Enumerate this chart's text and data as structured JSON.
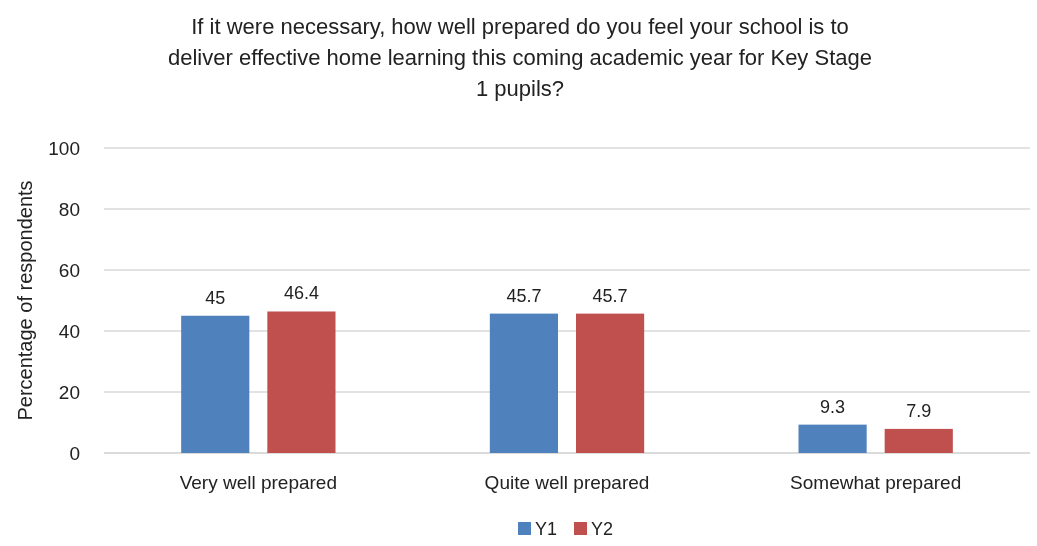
{
  "chart_data": {
    "type": "bar",
    "title": "If it were necessary, how well prepared do you feel your school is to deliver effective home learning this coming academic year for Key Stage 1 pupils?",
    "ylabel": "Percentage of respondents",
    "categories": [
      "Very well prepared",
      "Quite well prepared",
      "Somewhat prepared"
    ],
    "series": [
      {
        "name": "Y1",
        "color": "#4f81bd",
        "values": [
          45,
          45.7,
          9.3
        ]
      },
      {
        "name": "Y2",
        "color": "#c0504d",
        "values": [
          46.4,
          45.7,
          7.9
        ]
      }
    ],
    "ylim": [
      0,
      100
    ],
    "yticks": [
      0,
      20,
      40,
      60,
      80,
      100
    ],
    "grid": "y",
    "legend": "bottom",
    "data_labels": true
  }
}
